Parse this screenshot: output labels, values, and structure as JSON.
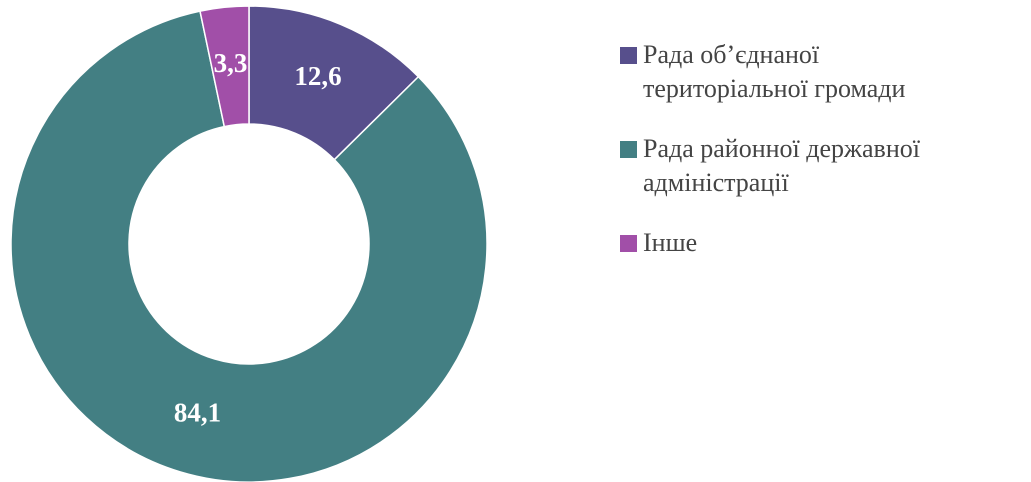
{
  "chart_data": {
    "type": "pie",
    "categories": [
      "Рада об’єднаної територіальної громади",
      "Рада районної державної адміністрації",
      "Інше"
    ],
    "values": [
      12.6,
      84.1,
      3.3
    ],
    "value_labels": [
      "12,6",
      "84,1",
      "3,3"
    ],
    "colors": [
      "#574f8c",
      "#437f83",
      "#a14fa8"
    ],
    "legend": "right"
  }
}
